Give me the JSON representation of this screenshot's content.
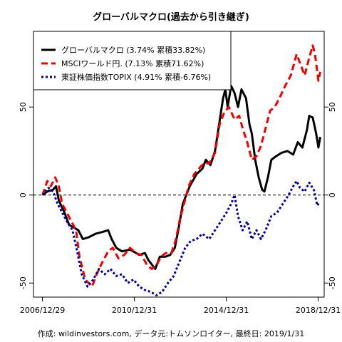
{
  "chart_data": {
    "type": "line",
    "title": "グローバルマクロ(過去から引き継ぎ)",
    "footer": "作成: wildinvestors.com, データ元:トムソンロイター, 最終日: 2019/1/31",
    "x_tick_labels": [
      "2006/12/29",
      "2010/12/31",
      "2014/12/31",
      "2018/12/31"
    ],
    "x_tick_dates": [
      2006.99,
      2010.99,
      2014.99,
      2018.99
    ],
    "xlim": [
      2006.6,
      2019.25
    ],
    "ylim": [
      -58,
      93
    ],
    "y_ticks": [
      -50,
      0,
      50
    ],
    "y_tick_labels": [
      "-50",
      "0",
      "50"
    ],
    "legend_position": "top-left",
    "grid": false,
    "reference_line": {
      "y": 0,
      "style": "dashed"
    },
    "series": [
      {
        "name": "グローバルマクロ (3.74% 累積33.82%)",
        "color": "#000000",
        "dash": "solid",
        "points": [
          [
            2006.99,
            0
          ],
          [
            2007.2,
            2
          ],
          [
            2007.45,
            3
          ],
          [
            2007.58,
            5
          ],
          [
            2007.7,
            -3
          ],
          [
            2007.95,
            -10
          ],
          [
            2008.15,
            -17
          ],
          [
            2008.3,
            -18
          ],
          [
            2008.55,
            -20
          ],
          [
            2008.75,
            -25
          ],
          [
            2009.0,
            -24
          ],
          [
            2009.3,
            -22
          ],
          [
            2009.6,
            -21
          ],
          [
            2009.85,
            -20
          ],
          [
            2010.0,
            -25
          ],
          [
            2010.2,
            -30
          ],
          [
            2010.45,
            -32
          ],
          [
            2010.8,
            -31
          ],
          [
            2011.2,
            -34
          ],
          [
            2011.45,
            -33
          ],
          [
            2011.6,
            -37
          ],
          [
            2011.9,
            -42
          ],
          [
            2012.1,
            -35
          ],
          [
            2012.35,
            -35
          ],
          [
            2012.55,
            -34
          ],
          [
            2012.75,
            -30
          ],
          [
            2012.9,
            -20
          ],
          [
            2013.1,
            -5
          ],
          [
            2013.4,
            5
          ],
          [
            2013.7,
            12
          ],
          [
            2013.95,
            15
          ],
          [
            2014.1,
            20
          ],
          [
            2014.3,
            17
          ],
          [
            2014.5,
            25
          ],
          [
            2014.7,
            42
          ],
          [
            2014.85,
            55
          ],
          [
            2014.95,
            60
          ],
          [
            2015.05,
            50
          ],
          [
            2015.2,
            62
          ],
          [
            2015.35,
            58
          ],
          [
            2015.5,
            50
          ],
          [
            2015.65,
            60
          ],
          [
            2015.85,
            55
          ],
          [
            2016.0,
            40
          ],
          [
            2016.1,
            35
          ],
          [
            2016.25,
            20
          ],
          [
            2016.4,
            10
          ],
          [
            2016.55,
            3
          ],
          [
            2016.65,
            2
          ],
          [
            2016.8,
            10
          ],
          [
            2016.95,
            20
          ],
          [
            2017.15,
            22
          ],
          [
            2017.4,
            24
          ],
          [
            2017.65,
            25
          ],
          [
            2017.9,
            23
          ],
          [
            2018.1,
            30
          ],
          [
            2018.3,
            27
          ],
          [
            2018.5,
            37
          ],
          [
            2018.6,
            45
          ],
          [
            2018.75,
            44
          ],
          [
            2018.9,
            35
          ],
          [
            2019.0,
            27
          ],
          [
            2019.08,
            33
          ]
        ]
      },
      {
        "name": "MSCIワールド円. (7.13% 累積71.62%)",
        "color": "#ee0000",
        "dash": "dashed",
        "points": [
          [
            2006.99,
            0
          ],
          [
            2007.2,
            8
          ],
          [
            2007.35,
            5
          ],
          [
            2007.55,
            10
          ],
          [
            2007.7,
            5
          ],
          [
            2007.85,
            -5
          ],
          [
            2008.05,
            -10
          ],
          [
            2008.25,
            -15
          ],
          [
            2008.45,
            -20
          ],
          [
            2008.6,
            -35
          ],
          [
            2008.85,
            -48
          ],
          [
            2009.15,
            -52
          ],
          [
            2009.35,
            -45
          ],
          [
            2009.6,
            -38
          ],
          [
            2009.85,
            -32
          ],
          [
            2010.05,
            -30
          ],
          [
            2010.3,
            -36
          ],
          [
            2010.55,
            -34
          ],
          [
            2010.8,
            -30
          ],
          [
            2011.05,
            -33
          ],
          [
            2011.3,
            -34
          ],
          [
            2011.55,
            -40
          ],
          [
            2011.75,
            -42
          ],
          [
            2011.95,
            -40
          ],
          [
            2012.15,
            -35
          ],
          [
            2012.35,
            -33
          ],
          [
            2012.6,
            -33
          ],
          [
            2012.8,
            -25
          ],
          [
            2012.95,
            -15
          ],
          [
            2013.15,
            -5
          ],
          [
            2013.35,
            5
          ],
          [
            2013.6,
            12
          ],
          [
            2013.8,
            15
          ],
          [
            2014.0,
            18
          ],
          [
            2014.25,
            18
          ],
          [
            2014.5,
            24
          ],
          [
            2014.7,
            40
          ],
          [
            2014.9,
            47
          ],
          [
            2015.1,
            50
          ],
          [
            2015.35,
            43
          ],
          [
            2015.55,
            45
          ],
          [
            2015.7,
            38
          ],
          [
            2015.9,
            30
          ],
          [
            2016.1,
            20
          ],
          [
            2016.3,
            22
          ],
          [
            2016.5,
            28
          ],
          [
            2016.7,
            38
          ],
          [
            2016.9,
            48
          ],
          [
            2017.1,
            50
          ],
          [
            2017.3,
            55
          ],
          [
            2017.55,
            62
          ],
          [
            2017.8,
            68
          ],
          [
            2018.05,
            80
          ],
          [
            2018.2,
            75
          ],
          [
            2018.4,
            68
          ],
          [
            2018.6,
            78
          ],
          [
            2018.75,
            85
          ],
          [
            2018.85,
            80
          ],
          [
            2019.0,
            65
          ],
          [
            2019.08,
            70
          ]
        ]
      },
      {
        "name": "東証株価指数TOPIX (4.91% 累積-6.76%)",
        "color": "#000099",
        "dash": "dotted",
        "points": [
          [
            2006.99,
            0
          ],
          [
            2007.25,
            4
          ],
          [
            2007.45,
            2
          ],
          [
            2007.65,
            -5
          ],
          [
            2007.85,
            -10
          ],
          [
            2008.05,
            -15
          ],
          [
            2008.3,
            -20
          ],
          [
            2008.5,
            -32
          ],
          [
            2008.7,
            -45
          ],
          [
            2008.95,
            -52
          ],
          [
            2009.2,
            -48
          ],
          [
            2009.45,
            -42
          ],
          [
            2009.7,
            -45
          ],
          [
            2009.95,
            -42
          ],
          [
            2010.2,
            -46
          ],
          [
            2010.45,
            -45
          ],
          [
            2010.7,
            -50
          ],
          [
            2010.95,
            -48
          ],
          [
            2011.2,
            -52
          ],
          [
            2011.45,
            -54
          ],
          [
            2011.7,
            -55
          ],
          [
            2011.95,
            -57
          ],
          [
            2012.2,
            -55
          ],
          [
            2012.45,
            -50
          ],
          [
            2012.7,
            -46
          ],
          [
            2012.95,
            -38
          ],
          [
            2013.2,
            -30
          ],
          [
            2013.45,
            -26
          ],
          [
            2013.7,
            -25
          ],
          [
            2013.95,
            -22
          ],
          [
            2014.25,
            -25
          ],
          [
            2014.5,
            -20
          ],
          [
            2014.75,
            -15
          ],
          [
            2015.0,
            -10
          ],
          [
            2015.2,
            -5
          ],
          [
            2015.35,
            0
          ],
          [
            2015.5,
            -12
          ],
          [
            2015.7,
            -20
          ],
          [
            2015.9,
            -15
          ],
          [
            2016.1,
            -25
          ],
          [
            2016.3,
            -20
          ],
          [
            2016.5,
            -25
          ],
          [
            2016.7,
            -20
          ],
          [
            2016.95,
            -12
          ],
          [
            2017.2,
            -10
          ],
          [
            2017.45,
            -5
          ],
          [
            2017.7,
            0
          ],
          [
            2017.9,
            5
          ],
          [
            2018.05,
            8
          ],
          [
            2018.2,
            4
          ],
          [
            2018.4,
            2
          ],
          [
            2018.6,
            7
          ],
          [
            2018.8,
            3
          ],
          [
            2018.95,
            -6
          ],
          [
            2019.05,
            -4
          ]
        ]
      }
    ]
  }
}
